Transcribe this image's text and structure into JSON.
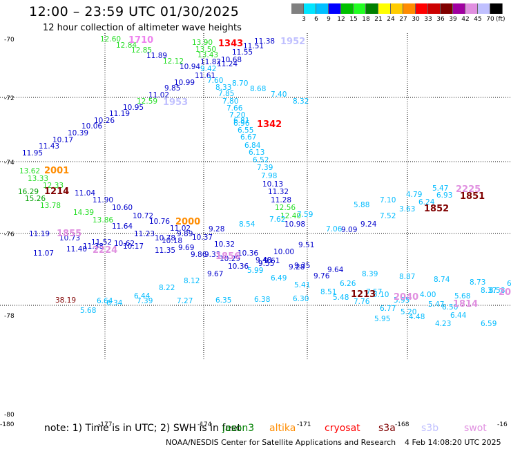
{
  "header": {
    "title": "12:00 – 23:59 UTC 01/30/2025",
    "subtitle": "12 hour collection of altimeter wave heights"
  },
  "colorbar": {
    "labels": [
      "3",
      "6",
      "9",
      "12",
      "15",
      "18",
      "21",
      "24",
      "27",
      "30",
      "33",
      "36",
      "39",
      "42",
      "45",
      "70"
    ],
    "unit": "(ft)",
    "colors": [
      "#808080",
      "#00e5ff",
      "#00bfff",
      "#0000ff",
      "#00c000",
      "#22ff22",
      "#008000",
      "#ffff00",
      "#ffcc00",
      "#ff8c00",
      "#ff0000",
      "#cc0000",
      "#800000",
      "#a000a0",
      "#e090e0",
      "#c0c0ff",
      "#000000"
    ]
  },
  "axes": {
    "lat_labels": [
      "-70",
      "-72",
      "-74",
      "-76",
      "-78",
      "-80"
    ],
    "lon_labels": [
      "-180",
      "-177",
      "-174",
      "-171",
      "-168",
      "-16"
    ]
  },
  "passes": [
    {
      "id": "1710",
      "color": "#ee82ee"
    },
    {
      "id": "1343",
      "color": "#ff0000"
    },
    {
      "id": "1952",
      "color": "#c0c0ff"
    },
    {
      "id": "1953",
      "color": "#c0c0ff"
    },
    {
      "id": "1342",
      "color": "#ff0000"
    },
    {
      "id": "2001",
      "color": "#ff8c00"
    },
    {
      "id": "1214",
      "color": "#800000"
    },
    {
      "id": "2000",
      "color": "#ff8c00"
    },
    {
      "id": "1855",
      "color": "#e090e0"
    },
    {
      "id": "2224",
      "color": "#e090e0"
    },
    {
      "id": "1856",
      "color": "#e090e0"
    },
    {
      "id": "2225",
      "color": "#e090e0"
    },
    {
      "id": "1851",
      "color": "#800000"
    },
    {
      "id": "1852",
      "color": "#800000"
    },
    {
      "id": "1213",
      "color": "#800000"
    },
    {
      "id": "2040",
      "color": "#e090e0"
    },
    {
      "id": "1814",
      "color": "#e090e0"
    },
    {
      "id": "20",
      "color": "#e090e0"
    }
  ],
  "heights": [
    {
      "v": "12.60",
      "c": "#22dd22"
    },
    {
      "v": "12.84",
      "c": "#22dd22"
    },
    {
      "v": "12.85",
      "c": "#22dd22"
    },
    {
      "v": "11.89",
      "c": "#0000cc"
    },
    {
      "v": "12.12",
      "c": "#22dd22"
    },
    {
      "v": "10.94",
      "c": "#0000cc"
    },
    {
      "v": "11.61",
      "c": "#0000cc"
    },
    {
      "v": "10.99",
      "c": "#0000cc"
    },
    {
      "v": "9.85",
      "c": "#0000cc"
    },
    {
      "v": "11.02",
      "c": "#0000cc"
    },
    {
      "v": "12.59",
      "c": "#22dd22"
    },
    {
      "v": "10.95",
      "c": "#0000cc"
    },
    {
      "v": "11.19",
      "c": "#0000cc"
    },
    {
      "v": "10.26",
      "c": "#0000cc"
    },
    {
      "v": "10.06",
      "c": "#0000cc"
    },
    {
      "v": "10.39",
      "c": "#0000cc"
    },
    {
      "v": "10.17",
      "c": "#0000cc"
    },
    {
      "v": "11.43",
      "c": "#0000cc"
    },
    {
      "v": "11.95",
      "c": "#0000cc"
    },
    {
      "v": "13.90",
      "c": "#22dd22"
    },
    {
      "v": "13.50",
      "c": "#22dd22"
    },
    {
      "v": "13.43",
      "c": "#22dd22"
    },
    {
      "v": "11.55",
      "c": "#0000cc"
    },
    {
      "v": "11.51",
      "c": "#0000cc"
    },
    {
      "v": "11.38",
      "c": "#0000cc"
    },
    {
      "v": "10.68",
      "c": "#0000cc"
    },
    {
      "v": "11.24",
      "c": "#0000cc"
    },
    {
      "v": "11.82",
      "c": "#0000cc"
    },
    {
      "v": "9.42",
      "c": "#00bbff"
    },
    {
      "v": "7.60",
      "c": "#00bbff"
    },
    {
      "v": "8.33",
      "c": "#00bbff"
    },
    {
      "v": "8.70",
      "c": "#00bbff"
    },
    {
      "v": "8.68",
      "c": "#00bbff"
    },
    {
      "v": "7.40",
      "c": "#00bbff"
    },
    {
      "v": "8.32",
      "c": "#00bbff"
    },
    {
      "v": "7.85",
      "c": "#00bbff"
    },
    {
      "v": "7.80",
      "c": "#00bbff"
    },
    {
      "v": "7.66",
      "c": "#00bbff"
    },
    {
      "v": "7.20",
      "c": "#00bbff"
    },
    {
      "v": "6.81",
      "c": "#00bbff"
    },
    {
      "v": "6.96",
      "c": "#00bbff"
    },
    {
      "v": "6.55",
      "c": "#00bbff"
    },
    {
      "v": "6.67",
      "c": "#00bbff"
    },
    {
      "v": "6.84",
      "c": "#00bbff"
    },
    {
      "v": "6.13",
      "c": "#00bbff"
    },
    {
      "v": "6.52",
      "c": "#00bbff"
    },
    {
      "v": "7.39",
      "c": "#00bbff"
    },
    {
      "v": "7.98",
      "c": "#00bbff"
    },
    {
      "v": "10.13",
      "c": "#0000cc"
    },
    {
      "v": "11.32",
      "c": "#0000cc"
    },
    {
      "v": "11.28",
      "c": "#0000cc"
    },
    {
      "v": "12.56",
      "c": "#22dd22"
    },
    {
      "v": "12.40",
      "c": "#22dd22"
    },
    {
      "v": "7.62",
      "c": "#00bbff"
    },
    {
      "v": "7.59",
      "c": "#00bbff"
    },
    {
      "v": "10.98",
      "c": "#0000cc"
    },
    {
      "v": "13.62",
      "c": "#22dd22"
    },
    {
      "v": "13.33",
      "c": "#22dd22"
    },
    {
      "v": "12.33",
      "c": "#22dd22"
    },
    {
      "v": "16.29",
      "c": "#00a000"
    },
    {
      "v": "15.26",
      "c": "#00a000"
    },
    {
      "v": "11.04",
      "c": "#0000cc"
    },
    {
      "v": "13.78",
      "c": "#22dd22"
    },
    {
      "v": "11.90",
      "c": "#0000cc"
    },
    {
      "v": "14.39",
      "c": "#22dd22"
    },
    {
      "v": "10.60",
      "c": "#0000cc"
    },
    {
      "v": "13.86",
      "c": "#22dd22"
    },
    {
      "v": "10.72",
      "c": "#0000cc"
    },
    {
      "v": "11.64",
      "c": "#0000cc"
    },
    {
      "v": "10.76",
      "c": "#0000cc"
    },
    {
      "v": "11.02",
      "c": "#0000cc"
    },
    {
      "v": "11.23",
      "c": "#0000cc"
    },
    {
      "v": "10.78",
      "c": "#0000cc"
    },
    {
      "v": "10.18",
      "c": "#0000cc"
    },
    {
      "v": "9.89",
      "c": "#0000cc"
    },
    {
      "v": "10.37",
      "c": "#0000cc"
    },
    {
      "v": "9.28",
      "c": "#0000cc"
    },
    {
      "v": "8.54",
      "c": "#00bbff"
    },
    {
      "v": "11.19",
      "c": "#0000cc"
    },
    {
      "v": "10.73",
      "c": "#0000cc"
    },
    {
      "v": "11.52",
      "c": "#0000cc"
    },
    {
      "v": "10.62",
      "c": "#0000cc"
    },
    {
      "v": "11.38",
      "c": "#0000cc"
    },
    {
      "v": "10.17",
      "c": "#0000cc"
    },
    {
      "v": "11.07",
      "c": "#0000cc"
    },
    {
      "v": "11.40",
      "c": "#0000cc"
    },
    {
      "v": "11.35",
      "c": "#0000cc"
    },
    {
      "v": "9.69",
      "c": "#0000cc"
    },
    {
      "v": "9.86",
      "c": "#0000cc"
    },
    {
      "v": "9.33",
      "c": "#0000cc"
    },
    {
      "v": "10.32",
      "c": "#0000cc"
    },
    {
      "v": "10.36",
      "c": "#0000cc"
    },
    {
      "v": "10.29",
      "c": "#0000cc"
    },
    {
      "v": "10.36",
      "c": "#0000cc"
    },
    {
      "v": "9.48",
      "c": "#0000cc"
    },
    {
      "v": "9.61",
      "c": "#0000cc"
    },
    {
      "v": "9.55",
      "c": "#0000cc"
    },
    {
      "v": "10.00",
      "c": "#0000cc"
    },
    {
      "v": "9.51",
      "c": "#0000cc"
    },
    {
      "v": "9.35",
      "c": "#0000cc"
    },
    {
      "v": "9.28",
      "c": "#0000cc"
    },
    {
      "v": "9.67",
      "c": "#0000cc"
    },
    {
      "v": "5.99",
      "c": "#00bbff"
    },
    {
      "v": "6.49",
      "c": "#00bbff"
    },
    {
      "v": "5.41",
      "c": "#00bbff"
    },
    {
      "v": "9.64",
      "c": "#0000cc"
    },
    {
      "v": "9.76",
      "c": "#0000cc"
    },
    {
      "v": "7.06",
      "c": "#00bbff"
    },
    {
      "v": "5.88",
      "c": "#00bbff"
    },
    {
      "v": "9.09",
      "c": "#0000cc"
    },
    {
      "v": "9.24",
      "c": "#0000cc"
    },
    {
      "v": "7.52",
      "c": "#00bbff"
    },
    {
      "v": "7.10",
      "c": "#00bbff"
    },
    {
      "v": "4.79",
      "c": "#00bbff"
    },
    {
      "v": "3.63",
      "c": "#00bbff"
    },
    {
      "v": "6.24",
      "c": "#00bbff"
    },
    {
      "v": "5.47",
      "c": "#00bbff"
    },
    {
      "v": "6.93",
      "c": "#00bbff"
    },
    {
      "v": "6.26",
      "c": "#00bbff"
    },
    {
      "v": "8.39",
      "c": "#00bbff"
    },
    {
      "v": "8.87",
      "c": "#00bbff"
    },
    {
      "v": "8.74",
      "c": "#00bbff"
    },
    {
      "v": "8.73",
      "c": "#00bbff"
    },
    {
      "v": "8.51",
      "c": "#00bbff"
    },
    {
      "v": "5.48",
      "c": "#00bbff"
    },
    {
      "v": "7.57",
      "c": "#00bbff"
    },
    {
      "v": "7.76",
      "c": "#00bbff"
    },
    {
      "v": "5.10",
      "c": "#00bbff"
    },
    {
      "v": "5.95",
      "c": "#00bbff"
    },
    {
      "v": "6.77",
      "c": "#00bbff"
    },
    {
      "v": "4.00",
      "c": "#00bbff"
    },
    {
      "v": "8.37",
      "c": "#00bbff"
    },
    {
      "v": "8.58",
      "c": "#00bbff"
    },
    {
      "v": "5.68",
      "c": "#00bbff"
    },
    {
      "v": "5.47",
      "c": "#00bbff"
    },
    {
      "v": "6.50",
      "c": "#00bbff"
    },
    {
      "v": "5.20",
      "c": "#00bbff"
    },
    {
      "v": "4.48",
      "c": "#00bbff"
    },
    {
      "v": "5.95",
      "c": "#00bbff"
    },
    {
      "v": "6.44",
      "c": "#00bbff"
    },
    {
      "v": "4.23",
      "c": "#00bbff"
    },
    {
      "v": "6.59",
      "c": "#00bbff"
    },
    {
      "v": "38.19",
      "c": "#800000"
    },
    {
      "v": "6.64",
      "c": "#00bbff"
    },
    {
      "v": "6.34",
      "c": "#00bbff"
    },
    {
      "v": "5.68",
      "c": "#00bbff"
    },
    {
      "v": "6.44",
      "c": "#00bbff"
    },
    {
      "v": "7.39",
      "c": "#00bbff"
    },
    {
      "v": "8.22",
      "c": "#00bbff"
    },
    {
      "v": "7.27",
      "c": "#00bbff"
    },
    {
      "v": "8.12",
      "c": "#00bbff"
    },
    {
      "v": "6.35",
      "c": "#00bbff"
    },
    {
      "v": "6.38",
      "c": "#00bbff"
    },
    {
      "v": "6.30",
      "c": "#00bbff"
    },
    {
      "v": "6.35",
      "c": "#00bbff"
    },
    {
      "v": "6",
      "c": "#00bbff"
    }
  ],
  "footer": {
    "note": "note:  1) Time is in UTC; 2) SWH is in feet",
    "satellites": [
      {
        "name": "jason3",
        "color": "#008000"
      },
      {
        "name": "altika",
        "color": "#ff8c00"
      },
      {
        "name": "cryosat",
        "color": "#ff0000"
      },
      {
        "name": "s3a",
        "color": "#800000"
      },
      {
        "name": "s3b",
        "color": "#c0c0ff"
      },
      {
        "name": "swot",
        "color": "#e090e0"
      }
    ],
    "credit": "NOAA/NESDIS Center for Satellite Applications and Research",
    "timestamp": "4 Feb 14:08:20 UTC 2025"
  }
}
